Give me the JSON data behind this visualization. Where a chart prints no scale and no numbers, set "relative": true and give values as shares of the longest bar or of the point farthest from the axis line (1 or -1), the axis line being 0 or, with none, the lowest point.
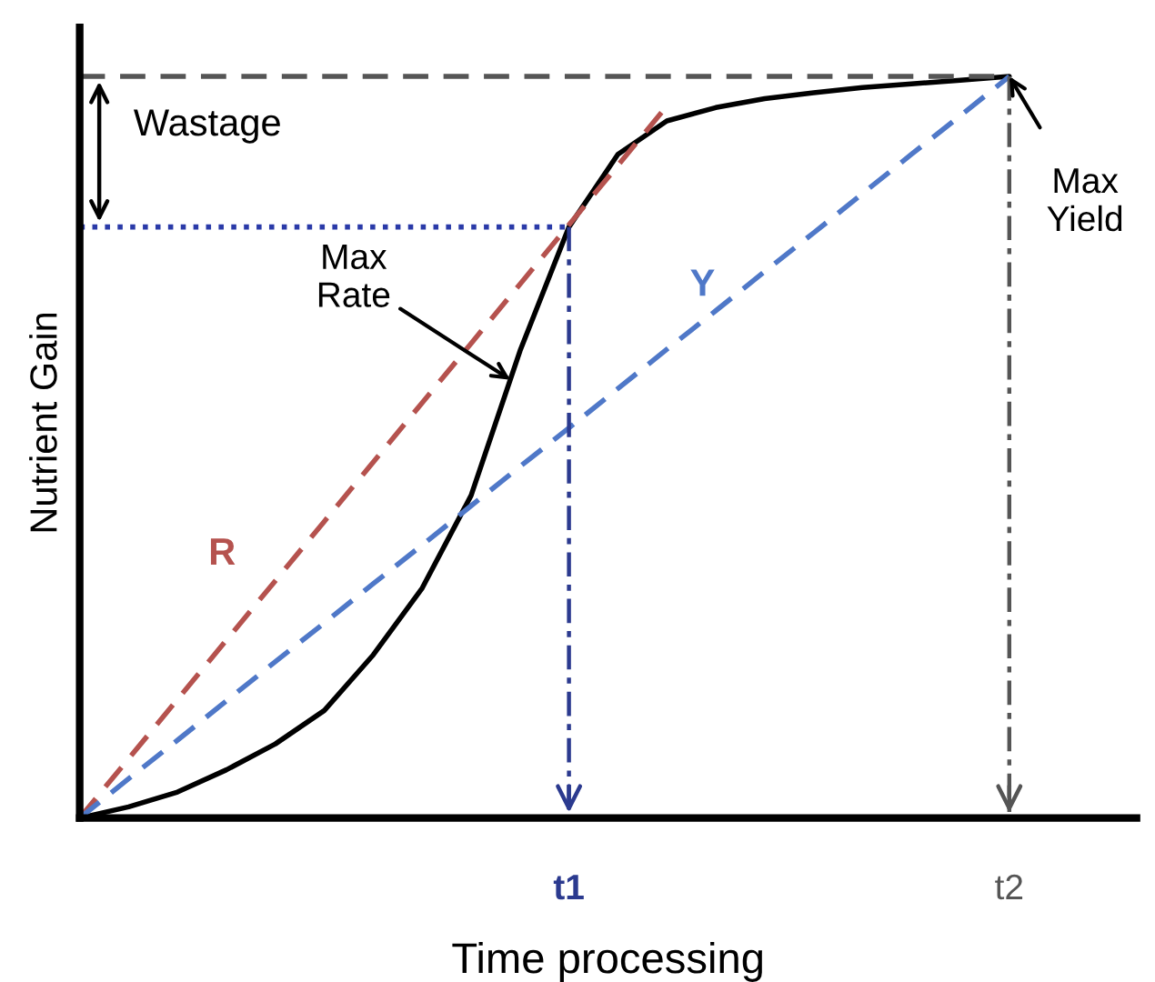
{
  "chart_data": {
    "type": "line",
    "relative": true,
    "xlabel": "Time processing",
    "ylabel": "Nutrient Gain",
    "categories": [
      null,
      null,
      null,
      null,
      null,
      null,
      null,
      null,
      null,
      null,
      "t1",
      null,
      null,
      null,
      null,
      null,
      null,
      null,
      null,
      "t2",
      null,
      null
    ],
    "ref_lines": [
      {
        "axis": "x",
        "value": "t1",
        "color": "#2b3a8f",
        "line_style": "dashdot"
      },
      {
        "axis": "x",
        "value": "t2",
        "color": "#555555",
        "line_style": "dashdot"
      }
    ],
    "series": [
      {
        "color": "#000000",
        "line_style": "solid",
        "values": [
          0,
          0.015,
          0.035,
          0.065,
          0.1,
          0.145,
          0.22,
          0.31,
          0.435,
          0.63,
          0.797,
          0.895,
          0.94,
          0.958,
          0.97,
          0.978,
          0.985,
          0.99,
          0.995,
          1,
          null,
          null
        ]
      },
      {
        "name": "R",
        "color": "#b5524e",
        "line_style": "dashed",
        "values": [
          0,
          0.08,
          0.16,
          0.24,
          0.32,
          0.4,
          0.48,
          0.56,
          0.64,
          0.72,
          0.8,
          0.88,
          0.96,
          null,
          null,
          null,
          null,
          null,
          null,
          null,
          null,
          null
        ]
      },
      {
        "name": "Y",
        "color": "#4f78c8",
        "line_style": "dashed",
        "values": [
          0,
          0.053,
          0.105,
          0.158,
          0.211,
          0.263,
          0.316,
          0.368,
          0.421,
          0.474,
          0.526,
          0.579,
          0.632,
          0.684,
          0.737,
          0.789,
          0.842,
          0.895,
          0.947,
          1,
          null,
          null
        ]
      },
      {
        "color": "#555555",
        "line_style": "dashed",
        "values": [
          1,
          1,
          1,
          1,
          1,
          1,
          1,
          1,
          1,
          1,
          1,
          1,
          1,
          1,
          1,
          1,
          1,
          1,
          1,
          1,
          null,
          null
        ]
      },
      {
        "color": "#2a3aa8",
        "line_style": "dotted",
        "values": [
          0.797,
          0.797,
          0.797,
          0.797,
          0.797,
          0.797,
          0.797,
          0.797,
          0.797,
          0.797,
          0.797,
          null,
          null,
          null,
          null,
          null,
          null,
          null,
          null,
          null,
          null,
          null
        ]
      }
    ],
    "annotations": [
      "Wastage",
      "Max\nRate",
      "Max\nYield"
    ]
  }
}
